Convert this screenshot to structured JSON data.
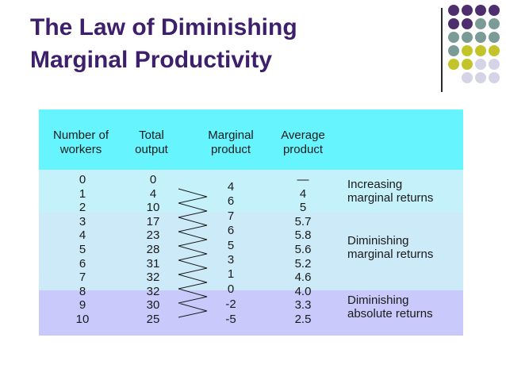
{
  "title": {
    "line1": "The Law of Diminishing",
    "line2": "Marginal Productivity"
  },
  "colors": {
    "title": "#3d1f6b",
    "dot_purple": "#4e2f6e",
    "dot_teal": "#7b9c96",
    "dot_yellow": "#c3c42a",
    "dot_lavender": "#d4d4e6",
    "header_band": "#66f5ff",
    "increasing_band": "#c5f1fb",
    "diminishing_band": "#cdeaf9",
    "absolute_band": "#c9c9fb"
  },
  "table": {
    "headers": {
      "workers": [
        "Number of",
        "workers"
      ],
      "total": [
        "Total",
        "output"
      ],
      "marginal": [
        "Marginal",
        "product"
      ],
      "average": [
        "Average",
        "product"
      ]
    },
    "workers": [
      "0",
      "1",
      "2",
      "3",
      "4",
      "5",
      "6",
      "7",
      "8",
      "9",
      "10"
    ],
    "total_output": [
      "0",
      "4",
      "10",
      "17",
      "23",
      "28",
      "31",
      "32",
      "32",
      "30",
      "25"
    ],
    "marginal_product": [
      "4",
      "6",
      "7",
      "6",
      "5",
      "3",
      "1",
      "0",
      "-2",
      "-5"
    ],
    "average_product": [
      "—",
      "4",
      "5",
      "5.7",
      "5.8",
      "5.6",
      "5.2",
      "4.6",
      "4.0",
      "3.3",
      "2.5"
    ],
    "annotations": {
      "increasing": [
        "Increasing",
        "marginal returns"
      ],
      "diminishing": [
        "Diminishing",
        "marginal returns"
      ],
      "absolute": [
        "Diminishing",
        "absolute returns"
      ]
    }
  }
}
